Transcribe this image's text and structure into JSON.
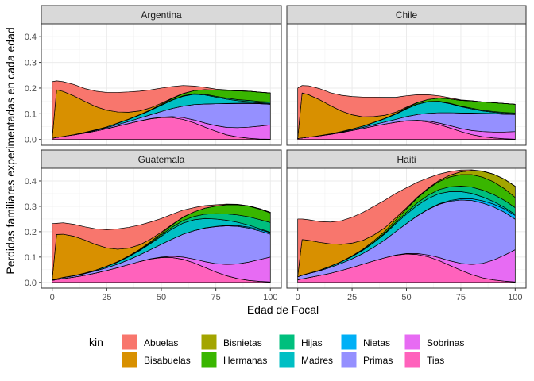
{
  "chart_data": {
    "type": "area",
    "stacked": true,
    "xlabel": "Edad de Focal",
    "ylabel": "Perdidas familiares experimentadas en cada edad",
    "xlim": [
      0,
      100
    ],
    "ylim": [
      0,
      0.45
    ],
    "x_ticks": [
      0,
      25,
      50,
      75,
      100
    ],
    "y_ticks": [
      0.0,
      0.1,
      0.2,
      0.3,
      0.4
    ],
    "x_tick_labels": [
      "0",
      "25",
      "50",
      "75",
      "100"
    ],
    "y_tick_labels": [
      "0.0",
      "0.1",
      "0.2",
      "0.3",
      "0.4"
    ],
    "legend_title": "kin",
    "legend_position": "bottom",
    "series_order": [
      "Abuelas",
      "Bisabuelas",
      "Bisnietas",
      "Hermanas",
      "Hijas",
      "Madres",
      "Nietas",
      "Primas",
      "Sobrinas",
      "Tias"
    ],
    "colors": {
      "Abuelas": "#F8766D",
      "Bisabuelas": "#D89000",
      "Bisnietas": "#A3A500",
      "Hermanas": "#39B600",
      "Hijas": "#00BF7D",
      "Madres": "#00BFC4",
      "Nietas": "#00B0F6",
      "Primas": "#9590FF",
      "Sobrinas": "#E76BF3",
      "Tias": "#FF62BC"
    },
    "stack_top_to_bottom": [
      "Abuelas",
      "Bisabuelas",
      "Bisnietas",
      "Hermanas",
      "Hijas",
      "Madres",
      "Nietas",
      "Primas",
      "Sobrinas",
      "Tias"
    ],
    "x": [
      0,
      2,
      5,
      10,
      15,
      20,
      25,
      30,
      35,
      40,
      45,
      50,
      55,
      60,
      65,
      70,
      75,
      80,
      85,
      90,
      95,
      100
    ],
    "panels": [
      {
        "name": "Argentina",
        "series": {
          "Tias": [
            0.005,
            0.008,
            0.012,
            0.018,
            0.025,
            0.033,
            0.042,
            0.052,
            0.062,
            0.072,
            0.08,
            0.085,
            0.085,
            0.078,
            0.065,
            0.048,
            0.032,
            0.018,
            0.01,
            0.005,
            0.002,
            0.001
          ],
          "Sobrinas": [
            0.0,
            0.0,
            0.0,
            0.0,
            0.0,
            0.0,
            0.0,
            0.0,
            0.0,
            0.0,
            0.001,
            0.002,
            0.004,
            0.007,
            0.011,
            0.016,
            0.022,
            0.029,
            0.036,
            0.043,
            0.05,
            0.056
          ],
          "Primas": [
            0.0,
            0.0,
            0.0,
            0.001,
            0.002,
            0.003,
            0.004,
            0.006,
            0.008,
            0.011,
            0.015,
            0.022,
            0.032,
            0.045,
            0.06,
            0.074,
            0.085,
            0.092,
            0.094,
            0.092,
            0.087,
            0.08
          ],
          "Nietas": [
            0.0,
            0.0,
            0.0,
            0.0,
            0.0,
            0.0,
            0.0,
            0.0,
            0.0,
            0.0,
            0.0,
            0.0,
            0.0,
            0.0,
            0.0,
            0.0,
            0.0,
            0.001,
            0.001,
            0.002,
            0.002,
            0.003
          ],
          "Madres": [
            0.0,
            0.0,
            0.0,
            0.0,
            0.001,
            0.002,
            0.003,
            0.005,
            0.008,
            0.012,
            0.017,
            0.024,
            0.032,
            0.038,
            0.04,
            0.035,
            0.026,
            0.017,
            0.01,
            0.005,
            0.002,
            0.001
          ],
          "Hijas": [
            0.0,
            0.0,
            0.0,
            0.0,
            0.0,
            0.0,
            0.0,
            0.0,
            0.0,
            0.0,
            0.0,
            0.001,
            0.001,
            0.002,
            0.002,
            0.003,
            0.003,
            0.004,
            0.004,
            0.005,
            0.005,
            0.005
          ],
          "Hermanas": [
            0.0,
            0.0,
            0.0,
            0.0,
            0.0,
            0.0,
            0.0,
            0.001,
            0.001,
            0.001,
            0.002,
            0.003,
            0.005,
            0.008,
            0.012,
            0.018,
            0.024,
            0.03,
            0.034,
            0.036,
            0.036,
            0.035
          ],
          "Bisnietas": [
            0.0,
            0.0,
            0.0,
            0.0,
            0.0,
            0.0,
            0.0,
            0.0,
            0.0,
            0.0,
            0.0,
            0.0,
            0.0,
            0.0,
            0.0,
            0.0,
            0.0,
            0.0,
            0.0,
            0.0,
            0.0,
            0.0
          ],
          "Bisabuelas": [
            0.002,
            0.185,
            0.175,
            0.15,
            0.12,
            0.09,
            0.065,
            0.043,
            0.027,
            0.015,
            0.008,
            0.004,
            0.002,
            0.001,
            0.0,
            0.0,
            0.0,
            0.0,
            0.0,
            0.0,
            0.0,
            0.0
          ],
          "Abuelas": [
            0.218,
            0.035,
            0.038,
            0.045,
            0.05,
            0.06,
            0.069,
            0.076,
            0.079,
            0.077,
            0.07,
            0.059,
            0.045,
            0.031,
            0.018,
            0.009,
            0.004,
            0.002,
            0.001,
            0.0,
            0.0,
            0.0
          ]
        }
      },
      {
        "name": "Chile",
        "series": {
          "Tias": [
            0.004,
            0.006,
            0.009,
            0.014,
            0.02,
            0.027,
            0.035,
            0.043,
            0.052,
            0.06,
            0.067,
            0.072,
            0.073,
            0.068,
            0.058,
            0.045,
            0.031,
            0.019,
            0.011,
            0.006,
            0.003,
            0.001
          ],
          "Sobrinas": [
            0.0,
            0.0,
            0.0,
            0.0,
            0.0,
            0.0,
            0.0,
            0.0,
            0.0,
            0.0,
            0.0,
            0.001,
            0.002,
            0.004,
            0.006,
            0.009,
            0.012,
            0.016,
            0.02,
            0.023,
            0.026,
            0.03
          ],
          "Primas": [
            0.0,
            0.0,
            0.0,
            0.001,
            0.001,
            0.002,
            0.003,
            0.004,
            0.006,
            0.008,
            0.011,
            0.016,
            0.022,
            0.03,
            0.04,
            0.05,
            0.06,
            0.067,
            0.07,
            0.071,
            0.069,
            0.066
          ],
          "Nietas": [
            0.0,
            0.0,
            0.0,
            0.0,
            0.0,
            0.0,
            0.0,
            0.0,
            0.0,
            0.0,
            0.0,
            0.0,
            0.0,
            0.0,
            0.0,
            0.0,
            0.0,
            0.001,
            0.001,
            0.001,
            0.002,
            0.002
          ],
          "Madres": [
            0.0,
            0.0,
            0.0,
            0.0,
            0.001,
            0.002,
            0.003,
            0.005,
            0.008,
            0.013,
            0.02,
            0.03,
            0.04,
            0.045,
            0.043,
            0.035,
            0.025,
            0.016,
            0.009,
            0.005,
            0.002,
            0.001
          ],
          "Hijas": [
            0.0,
            0.0,
            0.0,
            0.0,
            0.0,
            0.0,
            0.0,
            0.0,
            0.0,
            0.0,
            0.0,
            0.001,
            0.001,
            0.001,
            0.002,
            0.002,
            0.002,
            0.003,
            0.003,
            0.003,
            0.003,
            0.003
          ],
          "Hermanas": [
            0.0,
            0.0,
            0.0,
            0.0,
            0.0,
            0.0,
            0.0,
            0.0,
            0.001,
            0.001,
            0.002,
            0.003,
            0.005,
            0.008,
            0.012,
            0.017,
            0.022,
            0.028,
            0.032,
            0.034,
            0.035,
            0.034
          ],
          "Bisnietas": [
            0.0,
            0.0,
            0.0,
            0.0,
            0.0,
            0.0,
            0.0,
            0.0,
            0.0,
            0.0,
            0.0,
            0.0,
            0.0,
            0.0,
            0.0,
            0.0,
            0.0,
            0.0,
            0.0,
            0.0,
            0.0,
            0.0
          ],
          "Bisabuelas": [
            0.002,
            0.175,
            0.165,
            0.14,
            0.11,
            0.08,
            0.055,
            0.036,
            0.022,
            0.012,
            0.006,
            0.003,
            0.001,
            0.0,
            0.0,
            0.0,
            0.0,
            0.0,
            0.0,
            0.0,
            0.0,
            0.0
          ],
          "Abuelas": [
            0.194,
            0.029,
            0.035,
            0.043,
            0.05,
            0.061,
            0.071,
            0.077,
            0.076,
            0.07,
            0.058,
            0.044,
            0.03,
            0.018,
            0.009,
            0.004,
            0.002,
            0.001,
            0.0,
            0.0,
            0.0,
            0.0
          ]
        }
      },
      {
        "name": "Guatemala",
        "series": {
          "Tias": [
            0.008,
            0.011,
            0.015,
            0.021,
            0.028,
            0.037,
            0.047,
            0.058,
            0.07,
            0.082,
            0.092,
            0.098,
            0.098,
            0.091,
            0.077,
            0.059,
            0.041,
            0.026,
            0.015,
            0.008,
            0.004,
            0.002
          ],
          "Sobrinas": [
            0.0,
            0.0,
            0.0,
            0.0,
            0.0,
            0.0,
            0.0,
            0.0,
            0.0,
            0.0,
            0.001,
            0.002,
            0.005,
            0.009,
            0.015,
            0.023,
            0.033,
            0.045,
            0.058,
            0.072,
            0.086,
            0.098
          ],
          "Primas": [
            0.002,
            0.003,
            0.004,
            0.005,
            0.007,
            0.009,
            0.011,
            0.014,
            0.019,
            0.026,
            0.036,
            0.05,
            0.068,
            0.09,
            0.112,
            0.132,
            0.146,
            0.152,
            0.148,
            0.134,
            0.113,
            0.09
          ],
          "Nietas": [
            0.0,
            0.0,
            0.0,
            0.0,
            0.0,
            0.0,
            0.0,
            0.0,
            0.0,
            0.0,
            0.0,
            0.0,
            0.0,
            0.0,
            0.0,
            0.001,
            0.001,
            0.002,
            0.003,
            0.004,
            0.005,
            0.006
          ],
          "Madres": [
            0.0,
            0.0,
            0.001,
            0.001,
            0.002,
            0.003,
            0.005,
            0.008,
            0.012,
            0.017,
            0.024,
            0.032,
            0.04,
            0.044,
            0.043,
            0.037,
            0.029,
            0.02,
            0.013,
            0.008,
            0.004,
            0.002
          ],
          "Hijas": [
            0.0,
            0.0,
            0.0,
            0.0,
            0.0,
            0.0,
            0.0,
            0.001,
            0.001,
            0.002,
            0.003,
            0.005,
            0.007,
            0.01,
            0.013,
            0.017,
            0.021,
            0.025,
            0.029,
            0.033,
            0.036,
            0.038
          ],
          "Hermanas": [
            0.0,
            0.0,
            0.0,
            0.0,
            0.0,
            0.0,
            0.001,
            0.001,
            0.002,
            0.003,
            0.004,
            0.006,
            0.009,
            0.013,
            0.018,
            0.024,
            0.03,
            0.036,
            0.04,
            0.042,
            0.041,
            0.038
          ],
          "Bisnietas": [
            0.0,
            0.0,
            0.0,
            0.0,
            0.0,
            0.0,
            0.0,
            0.0,
            0.0,
            0.0,
            0.0,
            0.0,
            0.0,
            0.0,
            0.0,
            0.0,
            0.0,
            0.001,
            0.001,
            0.001,
            0.002,
            0.002
          ],
          "Bisabuelas": [
            0.003,
            0.175,
            0.17,
            0.155,
            0.13,
            0.1,
            0.072,
            0.049,
            0.031,
            0.018,
            0.01,
            0.005,
            0.002,
            0.001,
            0.0,
            0.0,
            0.0,
            0.0,
            0.0,
            0.0,
            0.0,
            0.0
          ],
          "Abuelas": [
            0.219,
            0.044,
            0.045,
            0.047,
            0.052,
            0.062,
            0.072,
            0.08,
            0.082,
            0.078,
            0.068,
            0.054,
            0.04,
            0.027,
            0.017,
            0.01,
            0.005,
            0.002,
            0.001,
            0.0,
            0.0,
            0.0
          ]
        }
      },
      {
        "name": "Haiti",
        "series": {
          "Tias": [
            0.01,
            0.014,
            0.019,
            0.027,
            0.036,
            0.047,
            0.059,
            0.072,
            0.085,
            0.097,
            0.107,
            0.112,
            0.11,
            0.101,
            0.086,
            0.067,
            0.048,
            0.031,
            0.018,
            0.01,
            0.005,
            0.002
          ],
          "Sobrinas": [
            0.0,
            0.0,
            0.0,
            0.0,
            0.0,
            0.0,
            0.0,
            0.0,
            0.0,
            0.0,
            0.001,
            0.002,
            0.004,
            0.007,
            0.012,
            0.018,
            0.027,
            0.04,
            0.057,
            0.078,
            0.102,
            0.127
          ],
          "Primas": [
            0.012,
            0.014,
            0.016,
            0.019,
            0.023,
            0.028,
            0.034,
            0.042,
            0.054,
            0.07,
            0.092,
            0.118,
            0.148,
            0.18,
            0.21,
            0.235,
            0.25,
            0.252,
            0.238,
            0.21,
            0.17,
            0.12
          ],
          "Nietas": [
            0.0,
            0.0,
            0.0,
            0.0,
            0.0,
            0.0,
            0.0,
            0.0,
            0.0,
            0.0,
            0.0,
            0.0,
            0.001,
            0.001,
            0.002,
            0.003,
            0.005,
            0.007,
            0.009,
            0.011,
            0.013,
            0.015
          ],
          "Madres": [
            0.0,
            0.001,
            0.001,
            0.002,
            0.004,
            0.006,
            0.009,
            0.013,
            0.018,
            0.024,
            0.031,
            0.037,
            0.041,
            0.042,
            0.04,
            0.035,
            0.028,
            0.021,
            0.015,
            0.01,
            0.006,
            0.004
          ],
          "Hijas": [
            0.0,
            0.0,
            0.0,
            0.0,
            0.0,
            0.0,
            0.001,
            0.001,
            0.002,
            0.003,
            0.005,
            0.007,
            0.01,
            0.013,
            0.016,
            0.019,
            0.022,
            0.025,
            0.027,
            0.028,
            0.028,
            0.027
          ],
          "Hermanas": [
            0.0,
            0.0,
            0.0,
            0.0,
            0.001,
            0.001,
            0.002,
            0.003,
            0.005,
            0.007,
            0.01,
            0.014,
            0.019,
            0.025,
            0.032,
            0.039,
            0.045,
            0.049,
            0.051,
            0.05,
            0.046,
            0.04
          ],
          "Bisnietas": [
            0.0,
            0.0,
            0.0,
            0.0,
            0.0,
            0.0,
            0.0,
            0.0,
            0.0,
            0.0,
            0.0,
            0.0,
            0.001,
            0.002,
            0.004,
            0.007,
            0.011,
            0.016,
            0.023,
            0.03,
            0.037,
            0.044
          ],
          "Bisabuelas": [
            0.003,
            0.14,
            0.13,
            0.11,
            0.088,
            0.068,
            0.05,
            0.035,
            0.023,
            0.014,
            0.008,
            0.004,
            0.002,
            0.001,
            0.0,
            0.0,
            0.0,
            0.0,
            0.0,
            0.0,
            0.0,
            0.0
          ],
          "Abuelas": [
            0.225,
            0.081,
            0.081,
            0.082,
            0.086,
            0.093,
            0.102,
            0.11,
            0.113,
            0.109,
            0.097,
            0.079,
            0.059,
            0.04,
            0.025,
            0.014,
            0.007,
            0.003,
            0.001,
            0.0,
            0.0,
            0.0
          ]
        }
      }
    ]
  }
}
